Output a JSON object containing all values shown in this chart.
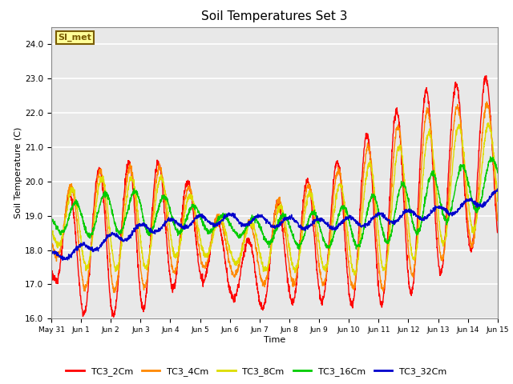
{
  "title": "Soil Temperatures Set 3",
  "xlabel": "Time",
  "ylabel": "Soil Temperature (C)",
  "ylim": [
    16.0,
    24.5
  ],
  "yticks": [
    16.0,
    17.0,
    18.0,
    19.0,
    20.0,
    21.0,
    22.0,
    23.0,
    24.0
  ],
  "bg_color": "#e8e8e8",
  "fig_bg": "#ffffff",
  "annotation_text": "SI_met",
  "annotation_bg": "#ffff99",
  "annotation_border": "#7a5c00",
  "series_colors": {
    "TC3_2Cm": "#ff0000",
    "TC3_4Cm": "#ff8800",
    "TC3_8Cm": "#dddd00",
    "TC3_16Cm": "#00cc00",
    "TC3_32Cm": "#0000cc"
  },
  "x_tick_labels": [
    "May 31",
    "Jun 1",
    "Jun 2",
    "Jun 3",
    "Jun 4",
    "Jun 5",
    "Jun 6",
    "Jun 7",
    "Jun 8",
    "Jun 9",
    "Jun 10",
    "Jun 11",
    "Jun 12",
    "Jun 13",
    "Jun 14",
    "Jun 15"
  ],
  "num_days": 15,
  "points_per_day": 144
}
